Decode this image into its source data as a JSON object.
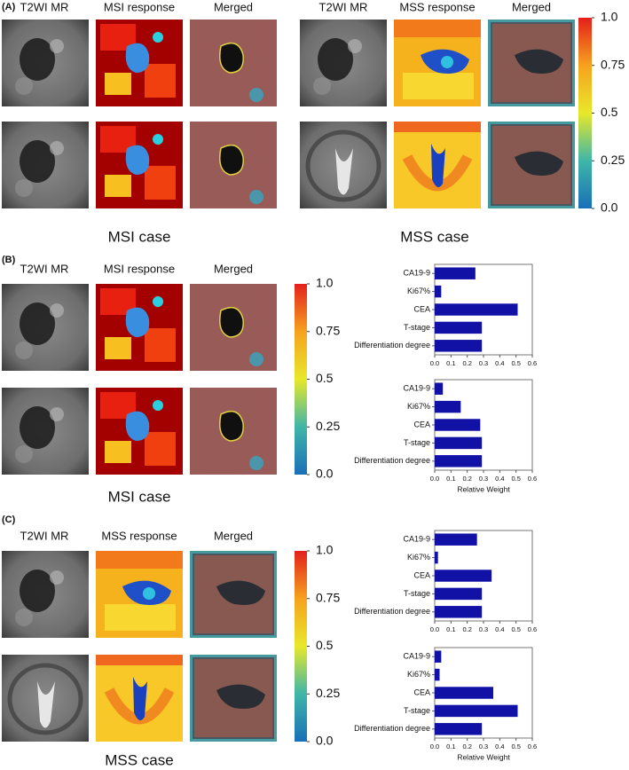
{
  "panels": [
    {
      "label": "(A)",
      "columns": [
        "T2WI MR",
        "MSI response",
        "Merged",
        "T2WI MR",
        "MSS response",
        "Merged"
      ],
      "captions": [
        "MSI case",
        "MSS case"
      ]
    },
    {
      "label": "(B)",
      "columns": [
        "T2WI MR",
        "MSI response",
        "Merged"
      ],
      "captions": [
        "MSI case"
      ]
    },
    {
      "label": "(C)",
      "columns": [
        "T2WI MR",
        "MSS response",
        "Merged"
      ],
      "captions": [
        "MSS case"
      ]
    }
  ],
  "colorbars": [
    {
      "lim": [
        0,
        1
      ],
      "ticks": [
        {
          "value": 0,
          "label": "0.0"
        },
        0.25,
        0.5,
        0.75,
        {
          "value": 1,
          "label": "1.0"
        }
      ]
    },
    {
      "lim": [
        0,
        1
      ],
      "ticks": [
        {
          "value": 0,
          "label": "0.0"
        },
        0.25,
        0.5,
        0.75,
        {
          "value": 1,
          "label": "1.0"
        }
      ]
    },
    {
      "lim": [
        0,
        1
      ],
      "ticks": [
        {
          "value": 0,
          "label": "0.0"
        },
        0.25,
        0.5,
        0.75,
        {
          "value": 1,
          "label": "1.0"
        }
      ]
    }
  ],
  "chart_data": [
    {
      "type": "bar",
      "orientation": "horizontal",
      "color": "#1111a6",
      "categories": [
        "CA19-9",
        "Ki67%",
        "CEA",
        "T-stage",
        "Differentiation degree"
      ],
      "values": [
        0.25,
        0.04,
        0.51,
        0.29,
        0.29
      ],
      "xlim": [
        0,
        0.6
      ],
      "xticks": [
        {
          "value": 0,
          "label": "0.0"
        },
        0.1,
        0.2,
        0.3,
        0.4,
        0.5,
        0.6
      ]
    },
    {
      "type": "bar",
      "orientation": "horizontal",
      "color": "#1111a6",
      "categories": [
        "CA19-9",
        "Ki67%",
        "CEA",
        "T-stage",
        "Differentiation degree"
      ],
      "values": [
        0.05,
        0.16,
        0.28,
        0.29,
        0.29
      ],
      "xlim": [
        0,
        0.6
      ],
      "xticks": [
        {
          "value": 0,
          "label": "0.0"
        },
        0.1,
        0.2,
        0.3,
        0.4,
        0.5,
        0.6
      ],
      "xlabel": "Relative Weight"
    },
    {
      "type": "bar",
      "orientation": "horizontal",
      "color": "#1111a6",
      "categories": [
        "CA19-9",
        "Ki67%",
        "CEA",
        "T-stage",
        "Differentiation degree"
      ],
      "values": [
        0.26,
        0.02,
        0.35,
        0.29,
        0.29
      ],
      "xlim": [
        0,
        0.6
      ],
      "xticks": [
        {
          "value": 0,
          "label": "0.0"
        },
        0.1,
        0.2,
        0.3,
        0.4,
        0.5,
        0.6
      ]
    },
    {
      "type": "bar",
      "orientation": "horizontal",
      "color": "#1111a6",
      "categories": [
        "CA19-9",
        "Ki67%",
        "CEA",
        "T-stage",
        "Differentiation degree"
      ],
      "values": [
        0.04,
        0.03,
        0.36,
        0.51,
        0.29
      ],
      "xlim": [
        0,
        0.6
      ],
      "xticks": [
        {
          "value": 0,
          "label": "0.0"
        },
        0.1,
        0.2,
        0.3,
        0.4,
        0.5,
        0.6
      ],
      "xlabel": "Relative Weight"
    }
  ]
}
